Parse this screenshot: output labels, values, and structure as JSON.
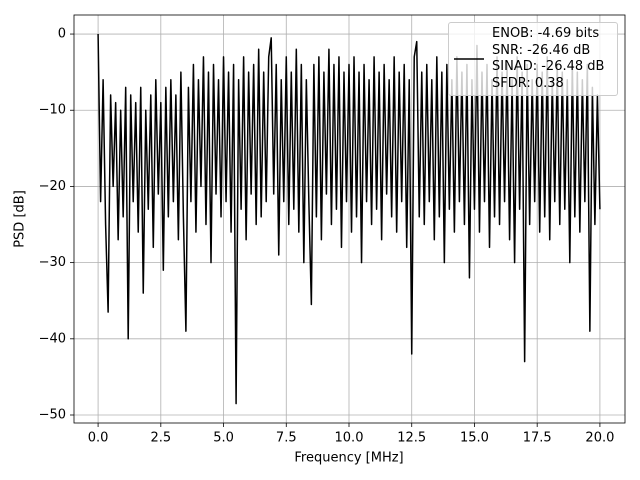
{
  "chart_data": {
    "type": "line",
    "xlabel": "Frequency [MHz]",
    "ylabel": "PSD [dB]",
    "xlim": [
      -0.96,
      21.0
    ],
    "ylim": [
      -51.05,
      2.5
    ],
    "xticks": [
      {
        "value": 0,
        "label": "0.0"
      },
      2.5,
      {
        "value": 5,
        "label": "5.0"
      },
      7.5,
      {
        "value": 10,
        "label": "10.0"
      },
      12.5,
      {
        "value": 15,
        "label": "15.0"
      },
      17.5,
      {
        "value": 20,
        "label": "20.0"
      }
    ],
    "yticks": [
      {
        "value": -50,
        "label": "−50"
      },
      {
        "value": -40,
        "label": "−40"
      },
      {
        "value": -30,
        "label": "−30"
      },
      {
        "value": -20,
        "label": "−20"
      },
      {
        "value": -10,
        "label": "−10"
      },
      0
    ],
    "grid": true,
    "legend": "upper right",
    "x": [
      0,
      0.1,
      0.2,
      0.3,
      0.4,
      0.5,
      0.6,
      0.7,
      0.8,
      0.9,
      1,
      1.1,
      1.2,
      1.3,
      1.4,
      1.5,
      1.6,
      1.7,
      1.8,
      1.9,
      2,
      2.1,
      2.2,
      2.3,
      2.4,
      2.5,
      2.6,
      2.7,
      2.8,
      2.9,
      3,
      3.1,
      3.2,
      3.3,
      3.4,
      3.5,
      3.6,
      3.7,
      3.8,
      3.9,
      4,
      4.1,
      4.2,
      4.3,
      4.4,
      4.5,
      4.6,
      4.7,
      4.8,
      4.9,
      5,
      5.1,
      5.2,
      5.3,
      5.4,
      5.5,
      5.6,
      5.7,
      5.8,
      5.9,
      6,
      6.1,
      6.2,
      6.3,
      6.4,
      6.5,
      6.6,
      6.7,
      6.8,
      6.9,
      7,
      7.1,
      7.2,
      7.3,
      7.4,
      7.5,
      7.6,
      7.7,
      7.8,
      7.9,
      8,
      8.1,
      8.2,
      8.3,
      8.4,
      8.5,
      8.6,
      8.7,
      8.8,
      8.9,
      9,
      9.1,
      9.2,
      9.3,
      9.4,
      9.5,
      9.6,
      9.7,
      9.8,
      9.9,
      10,
      10.1,
      10.2,
      10.3,
      10.4,
      10.5,
      10.6,
      10.7,
      10.8,
      10.9,
      11,
      11.1,
      11.2,
      11.3,
      11.4,
      11.5,
      11.6,
      11.7,
      11.8,
      11.9,
      12,
      12.1,
      12.2,
      12.3,
      12.4,
      12.5,
      12.6,
      12.7,
      12.8,
      12.9,
      13,
      13.1,
      13.2,
      13.3,
      13.4,
      13.5,
      13.6,
      13.7,
      13.8,
      13.9,
      14,
      14.1,
      14.2,
      14.3,
      14.4,
      14.5,
      14.6,
      14.7,
      14.8,
      14.9,
      15,
      15.1,
      15.2,
      15.3,
      15.4,
      15.5,
      15.6,
      15.7,
      15.8,
      15.9,
      16,
      16.1,
      16.2,
      16.3,
      16.4,
      16.5,
      16.6,
      16.7,
      16.8,
      16.9,
      17,
      17.1,
      17.2,
      17.3,
      17.4,
      17.5,
      17.6,
      17.7,
      17.8,
      17.9,
      18,
      18.1,
      18.2,
      18.3,
      18.4,
      18.5,
      18.6,
      18.7,
      18.8,
      18.9,
      19,
      19.1,
      19.2,
      19.3,
      19.4,
      19.5,
      19.6,
      19.7,
      19.8,
      19.9,
      20
    ],
    "series": [
      {
        "name": "ENOB: -4.69 bits\nSNR: -26.46 dB\nSINAD: -26.48 dB\nSFDR: 0.38",
        "color": "#000000",
        "values": [
          0,
          -22,
          -6,
          -25,
          -36.5,
          -8,
          -20,
          -9,
          -27,
          -10,
          -24,
          -7,
          -40,
          -8,
          -22,
          -9,
          -26,
          -7,
          -34,
          -10,
          -23,
          -8,
          -28,
          -6,
          -21,
          -9,
          -31,
          -7,
          -24,
          -6,
          -22,
          -8,
          -27,
          -5,
          -24,
          -39,
          -7,
          -22,
          -4,
          -26,
          -6,
          -20,
          -3,
          -25,
          -5,
          -30,
          -4,
          -21,
          -6,
          -24,
          -3,
          -22,
          -5,
          -26,
          -4,
          -48.5,
          -6,
          -23,
          -3,
          -27,
          -5,
          -21,
          -4,
          -25,
          -2,
          -24,
          -5,
          -22,
          -3,
          -0.5,
          -21,
          -4,
          -29,
          -6,
          -22,
          -3,
          -25,
          -5,
          -23,
          -2,
          -26,
          -4,
          -30,
          -6,
          -22,
          -35.5,
          -4,
          -24,
          -3,
          -27,
          -5,
          -21,
          -2,
          -25,
          -4,
          -23,
          -3,
          -28,
          -5,
          -22,
          -4,
          -26,
          -3,
          -24,
          -5,
          -30,
          -4,
          -22,
          -6,
          -25,
          -3,
          -23,
          -5,
          -27,
          -4,
          -21,
          -6,
          -24,
          -3,
          -26,
          -5,
          -22,
          -4,
          -28,
          -6,
          -42,
          -3,
          -1,
          -24,
          -5,
          -25,
          -4,
          -22,
          -6,
          -27,
          -3,
          -24,
          -5,
          -30,
          -4,
          -23,
          -6,
          -26,
          -3,
          -22,
          -5,
          -25,
          -4,
          -32,
          -6,
          -23,
          -1.5,
          -26,
          -5,
          -22,
          -4,
          -28,
          -6,
          -24,
          -3,
          -25,
          -5,
          -22,
          -4,
          -27,
          -6,
          -30,
          -3,
          -23,
          -5,
          -43,
          -4,
          -25,
          -6,
          -22,
          -4,
          -26,
          -5,
          -24,
          -3,
          -27,
          -6,
          -22,
          -4,
          -25,
          -5,
          -23,
          -6,
          -30,
          -4,
          -24,
          -5,
          -26,
          -6,
          -22,
          -4,
          -39,
          -7,
          -25,
          -8,
          -23
        ]
      }
    ]
  }
}
